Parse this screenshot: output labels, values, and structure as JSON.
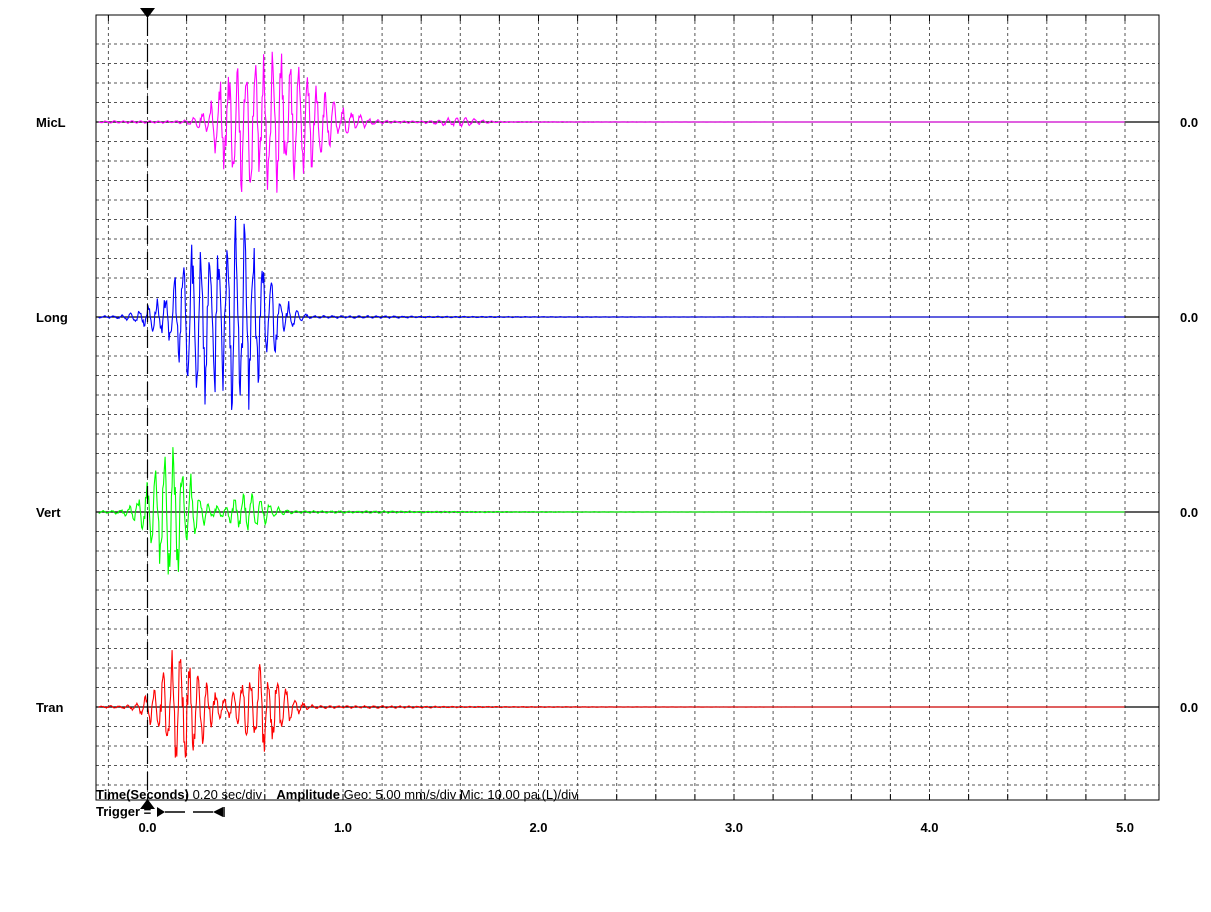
{
  "chart_data": {
    "type": "line",
    "x_ticks": [
      "0.0",
      "1.0",
      "2.0",
      "3.0",
      "4.0",
      "5.0"
    ],
    "xlim": [
      -0.25,
      5.15
    ],
    "x_minor_step": 0.2,
    "grid": true,
    "trigger_time": 0.0,
    "channels": [
      {
        "name": "MicL",
        "color": "#ff00ff",
        "baseline_label": "0.0",
        "zero": 0,
        "events": [
          {
            "t": 0.42,
            "a": 4.2
          },
          {
            "t": 0.5,
            "a": -3.6
          },
          {
            "t": 0.62,
            "a": 3.4
          },
          {
            "t": 0.68,
            "a": -3.8
          },
          {
            "t": 0.82,
            "a": 4.4
          },
          {
            "t": 1.0,
            "a": 1.2
          },
          {
            "t": 1.6,
            "a": -0.9
          }
        ]
      },
      {
        "name": "Long",
        "color": "#0000ff",
        "baseline_label": "0.0",
        "zero": 0,
        "events": [
          {
            "t": 0.05,
            "a": 1.2
          },
          {
            "t": 0.22,
            "a": 6.0
          },
          {
            "t": 0.3,
            "a": -4.0
          },
          {
            "t": 0.42,
            "a": 5.2
          },
          {
            "t": 0.5,
            "a": -6.0
          },
          {
            "t": 0.6,
            "a": 4.0
          }
        ]
      },
      {
        "name": "Vert",
        "color": "#00ff00",
        "baseline_label": "0.0",
        "zero": 0,
        "events": [
          {
            "t": 0.05,
            "a": 1.4
          },
          {
            "t": 0.15,
            "a": 3.2
          },
          {
            "t": 0.12,
            "a": -4.0
          },
          {
            "t": 0.52,
            "a": 2.0
          }
        ]
      },
      {
        "name": "Tran",
        "color": "#ff0000",
        "baseline_label": "0.0",
        "zero": 0,
        "events": [
          {
            "t": 0.1,
            "a": 1.2
          },
          {
            "t": 0.22,
            "a": 3.8
          },
          {
            "t": 0.15,
            "a": -3.5
          },
          {
            "t": 0.55,
            "a": 2.8
          },
          {
            "t": 0.62,
            "a": -3.0
          }
        ]
      }
    ]
  },
  "footer": {
    "time_label": "Time(Seconds)",
    "time_value": "0.20 sec/div",
    "amplitude_label": "Amplitude",
    "amplitude_value": "Geo: 5.00 mm/s/div Mic: 10.00 pa.(L)/div",
    "trigger_label": "Trigger ="
  }
}
